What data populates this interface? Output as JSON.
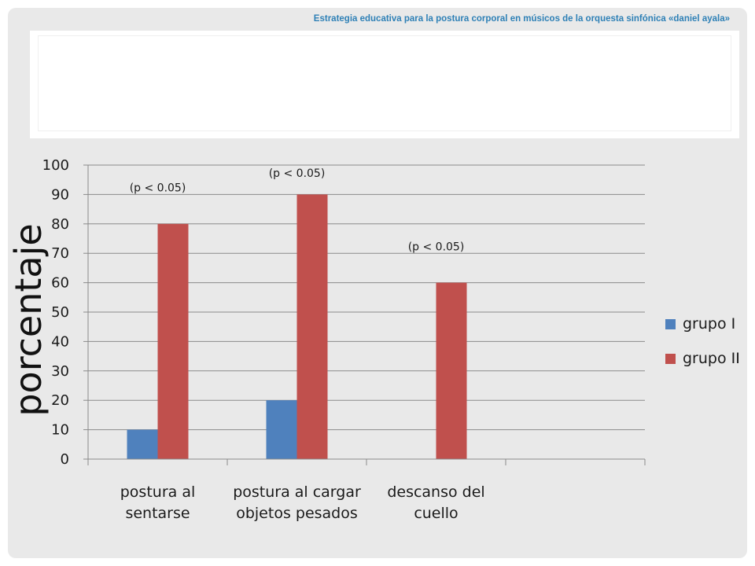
{
  "slide": {
    "header": "Estrategia educativa para la postura corporal en músicos de la orquesta sinfónica «daniel ayala»"
  },
  "chart_data": {
    "type": "bar",
    "title": "",
    "ylabel": "porcentaje",
    "xlabel": "",
    "ylim": [
      0,
      100
    ],
    "yticks": [
      0,
      10,
      20,
      30,
      40,
      50,
      60,
      70,
      80,
      90,
      100
    ],
    "grid": true,
    "legend_position": "right",
    "categories": [
      [
        "postura al",
        "sentarse"
      ],
      [
        "postura al cargar",
        "objetos pesados"
      ],
      [
        "descanso del",
        "cuello"
      ],
      [
        "",
        ""
      ]
    ],
    "series": [
      {
        "name": "grupo I",
        "color": "#4f81bd",
        "values": [
          10,
          20,
          0,
          0
        ]
      },
      {
        "name": "grupo II",
        "color": "#c0504d",
        "values": [
          80,
          90,
          60,
          0
        ]
      }
    ],
    "annotations": [
      {
        "category": 0,
        "text": "(p < 0.05)",
        "y": 91
      },
      {
        "category": 1,
        "text": "(p < 0.05)",
        "y": 96
      },
      {
        "category": 2,
        "text": "(p <  0.05)",
        "y": 71
      }
    ]
  }
}
